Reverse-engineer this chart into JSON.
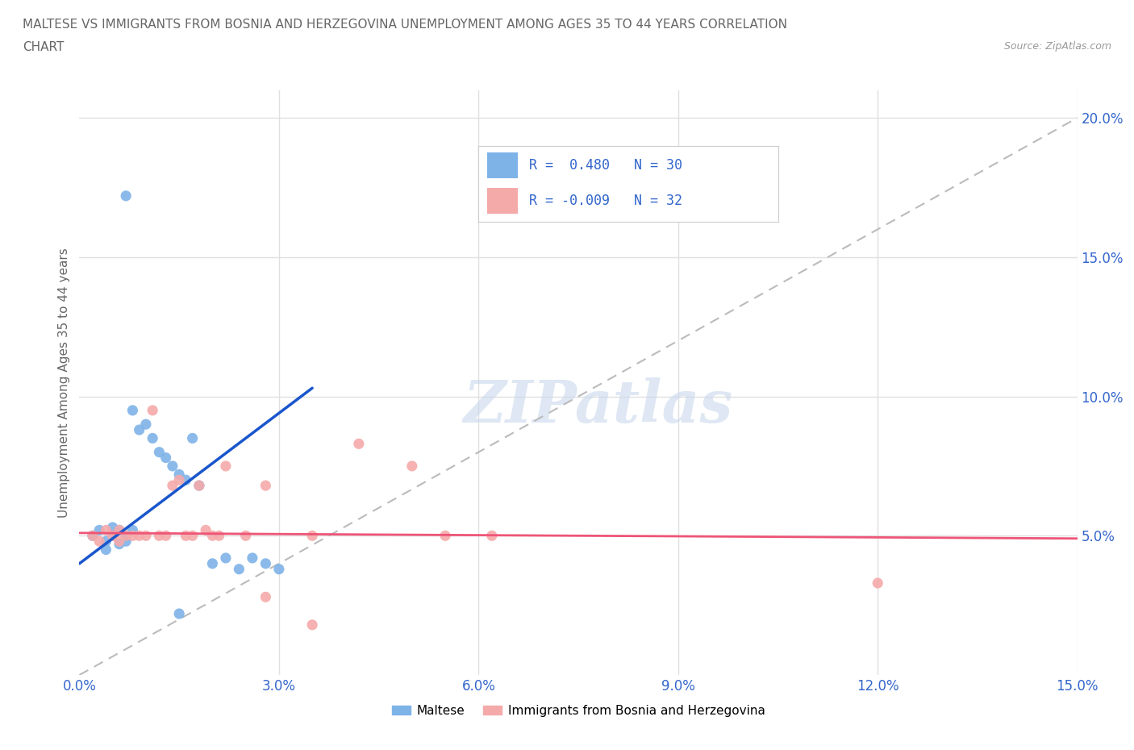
{
  "title_line1": "MALTESE VS IMMIGRANTS FROM BOSNIA AND HERZEGOVINA UNEMPLOYMENT AMONG AGES 35 TO 44 YEARS CORRELATION",
  "title_line2": "CHART",
  "source": "Source: ZipAtlas.com",
  "ylabel": "Unemployment Among Ages 35 to 44 years",
  "xlim": [
    0.0,
    0.15
  ],
  "ylim": [
    0.0,
    0.21
  ],
  "xticks": [
    0.0,
    0.03,
    0.06,
    0.09,
    0.12,
    0.15
  ],
  "yticks": [
    0.05,
    0.1,
    0.15,
    0.2
  ],
  "ytick_labels": [
    "5.0%",
    "10.0%",
    "15.0%",
    "20.0%"
  ],
  "xtick_labels": [
    "0.0%",
    "3.0%",
    "6.0%",
    "9.0%",
    "12.0%",
    "15.0%"
  ],
  "blue_color": "#7EB3E8",
  "pink_color": "#F5AAAA",
  "blue_line_color": "#1A56CC",
  "pink_line_color": "#EE5577",
  "dashed_line_color": "#BBBBBB",
  "R_blue": 0.48,
  "N_blue": 30,
  "R_pink": -0.009,
  "N_pink": 32,
  "legend_text_color": "#3366CC",
  "watermark": "ZIPatlas",
  "blue_scatter": [
    [
      0.002,
      0.05
    ],
    [
      0.003,
      0.052
    ],
    [
      0.004,
      0.048
    ],
    [
      0.004,
      0.045
    ],
    [
      0.005,
      0.05
    ],
    [
      0.005,
      0.053
    ],
    [
      0.006,
      0.052
    ],
    [
      0.006,
      0.047
    ],
    [
      0.007,
      0.05
    ],
    [
      0.007,
      0.048
    ],
    [
      0.008,
      0.052
    ],
    [
      0.008,
      0.095
    ],
    [
      0.009,
      0.088
    ],
    [
      0.01,
      0.09
    ],
    [
      0.011,
      0.085
    ],
    [
      0.012,
      0.08
    ],
    [
      0.013,
      0.078
    ],
    [
      0.014,
      0.075
    ],
    [
      0.015,
      0.072
    ],
    [
      0.016,
      0.07
    ],
    [
      0.017,
      0.085
    ],
    [
      0.018,
      0.068
    ],
    [
      0.02,
      0.04
    ],
    [
      0.022,
      0.042
    ],
    [
      0.024,
      0.038
    ],
    [
      0.026,
      0.042
    ],
    [
      0.028,
      0.04
    ],
    [
      0.03,
      0.038
    ],
    [
      0.007,
      0.172
    ],
    [
      0.015,
      0.022
    ]
  ],
  "pink_scatter": [
    [
      0.002,
      0.05
    ],
    [
      0.003,
      0.048
    ],
    [
      0.004,
      0.052
    ],
    [
      0.005,
      0.05
    ],
    [
      0.006,
      0.052
    ],
    [
      0.006,
      0.048
    ],
    [
      0.007,
      0.05
    ],
    [
      0.008,
      0.05
    ],
    [
      0.009,
      0.05
    ],
    [
      0.01,
      0.05
    ],
    [
      0.011,
      0.095
    ],
    [
      0.012,
      0.05
    ],
    [
      0.013,
      0.05
    ],
    [
      0.014,
      0.068
    ],
    [
      0.015,
      0.07
    ],
    [
      0.016,
      0.05
    ],
    [
      0.017,
      0.05
    ],
    [
      0.018,
      0.068
    ],
    [
      0.019,
      0.052
    ],
    [
      0.02,
      0.05
    ],
    [
      0.021,
      0.05
    ],
    [
      0.022,
      0.075
    ],
    [
      0.025,
      0.05
    ],
    [
      0.028,
      0.068
    ],
    [
      0.035,
      0.05
    ],
    [
      0.042,
      0.083
    ],
    [
      0.05,
      0.075
    ],
    [
      0.055,
      0.05
    ],
    [
      0.062,
      0.05
    ],
    [
      0.12,
      0.033
    ],
    [
      0.028,
      0.028
    ],
    [
      0.035,
      0.018
    ]
  ],
  "blue_trend_x": [
    0.0,
    0.035
  ],
  "blue_trend_y": [
    0.04,
    0.103
  ],
  "pink_trend_x": [
    0.0,
    0.15
  ],
  "pink_trend_y": [
    0.051,
    0.049
  ],
  "diag_line_x": [
    0.0,
    0.15
  ],
  "diag_line_y": [
    0.0,
    0.2
  ],
  "bg_color": "#FFFFFF",
  "grid_color": "#E0E0E0",
  "tick_label_color": "#3366CC",
  "title_color": "#666666"
}
